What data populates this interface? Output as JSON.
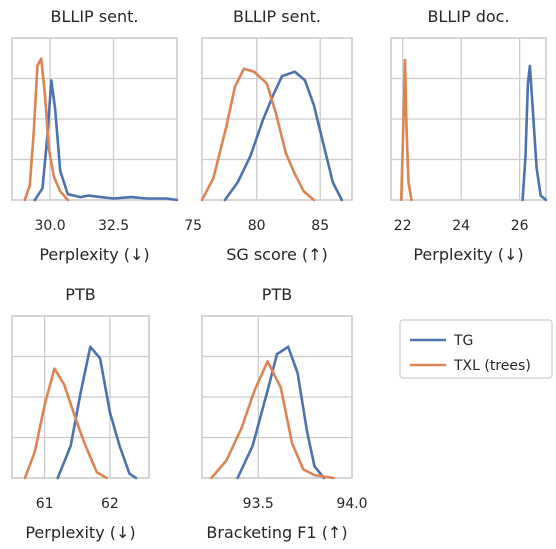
{
  "colors": {
    "TG": "#4c72b0",
    "TXL (trees)": "#dd8452"
  },
  "legend": {
    "entries": [
      "TG",
      "TXL (trees)"
    ]
  },
  "chart_data": [
    {
      "type": "line",
      "title": "BLLIP sent.",
      "xlabel": "Perplexity (↓)",
      "xlim": [
        28.5,
        35.0
      ],
      "xticks": [
        30.0,
        32.5
      ],
      "xtick_labels": [
        "30.0",
        "32.5"
      ],
      "series": [
        {
          "name": "TG",
          "points": [
            [
              29.4,
              0.0
            ],
            [
              29.7,
              0.08
            ],
            [
              29.9,
              0.45
            ],
            [
              30.05,
              0.82
            ],
            [
              30.2,
              0.62
            ],
            [
              30.4,
              0.2
            ],
            [
              30.7,
              0.04
            ],
            [
              31.2,
              0.02
            ],
            [
              31.5,
              0.03
            ],
            [
              32.0,
              0.02
            ],
            [
              32.5,
              0.01
            ],
            [
              33.2,
              0.02
            ],
            [
              33.8,
              0.01
            ],
            [
              34.6,
              0.01
            ],
            [
              35.0,
              0.0
            ]
          ]
        },
        {
          "name": "TXL (trees)",
          "points": [
            [
              29.0,
              0.0
            ],
            [
              29.2,
              0.1
            ],
            [
              29.35,
              0.45
            ],
            [
              29.5,
              0.92
            ],
            [
              29.65,
              0.97
            ],
            [
              29.8,
              0.72
            ],
            [
              29.95,
              0.35
            ],
            [
              30.15,
              0.16
            ],
            [
              30.4,
              0.06
            ],
            [
              30.7,
              0.0
            ]
          ]
        }
      ]
    },
    {
      "type": "line",
      "title": "BLLIP sent.",
      "xlabel": "SG score (↑)",
      "xlim": [
        75.7,
        87.5
      ],
      "xticks": [
        75,
        80,
        85
      ],
      "xtick_labels": [
        "75",
        "80",
        "85"
      ],
      "series": [
        {
          "name": "TG",
          "points": [
            [
              77.5,
              0.0
            ],
            [
              78.5,
              0.12
            ],
            [
              79.5,
              0.3
            ],
            [
              80.5,
              0.55
            ],
            [
              81.3,
              0.72
            ],
            [
              82.0,
              0.85
            ],
            [
              83.0,
              0.88
            ],
            [
              83.8,
              0.82
            ],
            [
              84.5,
              0.65
            ],
            [
              85.2,
              0.4
            ],
            [
              86.0,
              0.12
            ],
            [
              86.7,
              0.0
            ]
          ]
        },
        {
          "name": "TXL (trees)",
          "points": [
            [
              75.7,
              0.0
            ],
            [
              76.6,
              0.15
            ],
            [
              77.6,
              0.5
            ],
            [
              78.3,
              0.78
            ],
            [
              79.0,
              0.9
            ],
            [
              79.8,
              0.88
            ],
            [
              80.8,
              0.8
            ],
            [
              81.5,
              0.6
            ],
            [
              82.3,
              0.32
            ],
            [
              83.0,
              0.18
            ],
            [
              83.7,
              0.06
            ],
            [
              84.5,
              0.0
            ]
          ]
        }
      ]
    },
    {
      "type": "line",
      "title": "BLLIP doc.",
      "xlabel": "Perplexity (↓)",
      "xlim": [
        21.6,
        26.9
      ],
      "xticks": [
        22,
        24,
        26
      ],
      "xtick_labels": [
        "22",
        "24",
        "26"
      ],
      "series": [
        {
          "name": "TG",
          "points": [
            [
              26.1,
              0.0
            ],
            [
              26.2,
              0.3
            ],
            [
              26.28,
              0.8
            ],
            [
              26.35,
              0.92
            ],
            [
              26.45,
              0.62
            ],
            [
              26.58,
              0.22
            ],
            [
              26.72,
              0.03
            ],
            [
              26.9,
              0.0
            ]
          ]
        },
        {
          "name": "TXL (trees)",
          "points": [
            [
              21.95,
              0.0
            ],
            [
              22.02,
              0.5
            ],
            [
              22.08,
              0.96
            ],
            [
              22.13,
              0.5
            ],
            [
              22.2,
              0.12
            ],
            [
              22.3,
              0.0
            ]
          ]
        }
      ]
    },
    {
      "type": "line",
      "title": "PTB",
      "xlabel": "Perplexity (↓)",
      "xlim": [
        60.5,
        62.6
      ],
      "xticks": [
        61,
        62
      ],
      "xtick_labels": [
        "61",
        "62"
      ],
      "series": [
        {
          "name": "TG",
          "points": [
            [
              61.2,
              0.0
            ],
            [
              61.4,
              0.22
            ],
            [
              61.55,
              0.58
            ],
            [
              61.7,
              0.9
            ],
            [
              61.85,
              0.82
            ],
            [
              62.0,
              0.45
            ],
            [
              62.15,
              0.22
            ],
            [
              62.3,
              0.03
            ],
            [
              62.4,
              0.0
            ]
          ]
        },
        {
          "name": "TXL (trees)",
          "points": [
            [
              60.7,
              0.0
            ],
            [
              60.85,
              0.18
            ],
            [
              61.0,
              0.5
            ],
            [
              61.15,
              0.75
            ],
            [
              61.3,
              0.64
            ],
            [
              61.45,
              0.44
            ],
            [
              61.6,
              0.25
            ],
            [
              61.8,
              0.04
            ],
            [
              61.95,
              0.0
            ]
          ]
        }
      ]
    },
    {
      "type": "line",
      "title": "PTB",
      "xlabel": "Bracketing F1 (↑)",
      "xlim": [
        93.2,
        94.0
      ],
      "xticks": [
        93.5,
        94.0
      ],
      "xtick_labels": [
        "93.5",
        "94.0"
      ],
      "series": [
        {
          "name": "TG",
          "points": [
            [
              93.39,
              0.0
            ],
            [
              93.47,
              0.22
            ],
            [
              93.55,
              0.6
            ],
            [
              93.6,
              0.85
            ],
            [
              93.66,
              0.9
            ],
            [
              93.71,
              0.72
            ],
            [
              93.76,
              0.32
            ],
            [
              93.8,
              0.08
            ],
            [
              93.85,
              0.0
            ]
          ]
        },
        {
          "name": "TXL (trees)",
          "points": [
            [
              93.25,
              0.0
            ],
            [
              93.33,
              0.12
            ],
            [
              93.41,
              0.34
            ],
            [
              93.48,
              0.6
            ],
            [
              93.55,
              0.8
            ],
            [
              93.62,
              0.62
            ],
            [
              93.68,
              0.24
            ],
            [
              93.74,
              0.06
            ],
            [
              93.8,
              0.02
            ],
            [
              93.9,
              0.0
            ]
          ]
        }
      ]
    }
  ]
}
